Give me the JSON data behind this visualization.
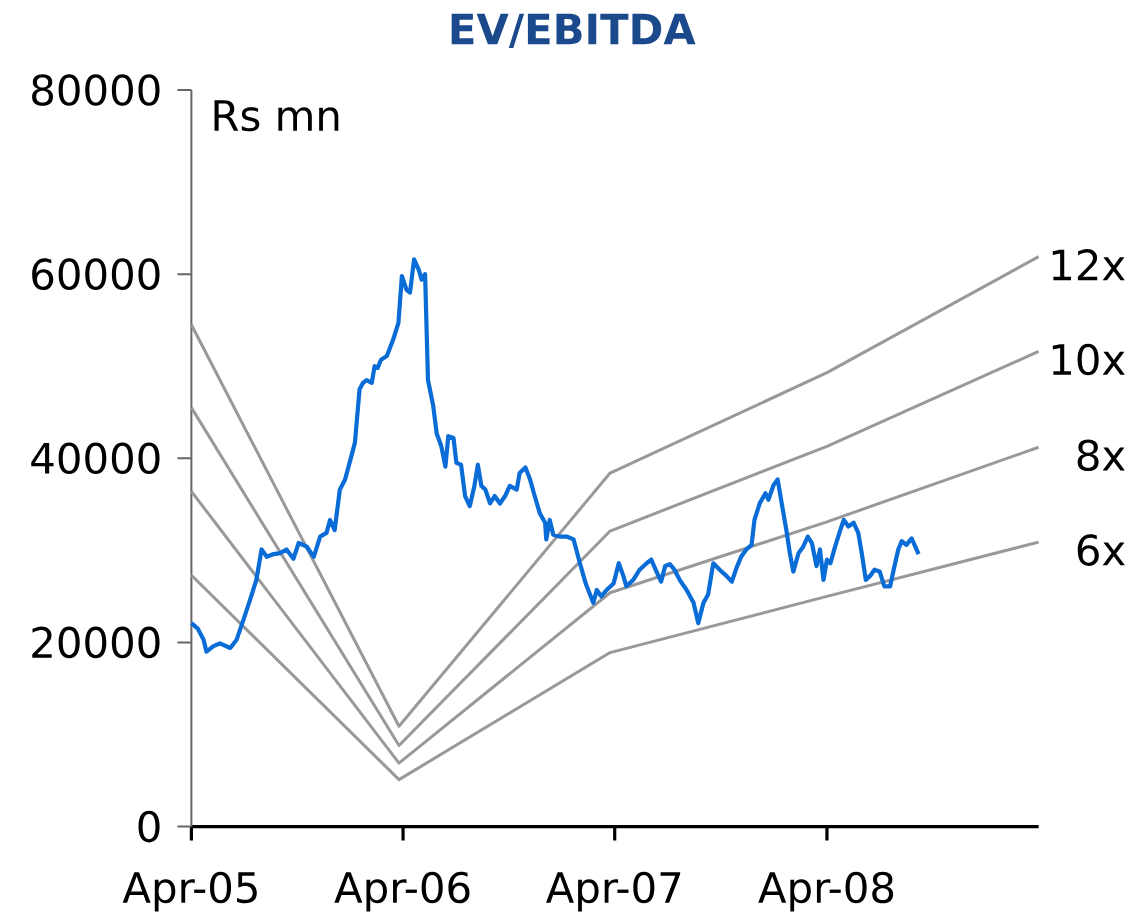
{
  "chart_data": {
    "type": "line",
    "title": "EV/EBITDA",
    "ylabel": "Rs mn",
    "xlim": [
      "2005-04-01",
      "2009-04-01"
    ],
    "xticks": [
      {
        "value": "2005-04-01",
        "label": "Apr-05"
      },
      {
        "value": "2006-04-01",
        "label": "Apr-06"
      },
      {
        "value": "2007-04-01",
        "label": "Apr-07"
      },
      {
        "value": "2008-04-01",
        "label": "Apr-08"
      }
    ],
    "ylim": [
      0,
      80000
    ],
    "yticks": [
      0,
      20000,
      40000,
      60000,
      80000
    ],
    "marker": "none",
    "series": [
      {
        "color": "#0a6cd6",
        "x": [
          "2005-04-01",
          "2005-04-12",
          "2005-04-22",
          "2005-04-27",
          "2005-05-09",
          "2005-05-20",
          "2005-06-07",
          "2005-06-18",
          "2005-06-30",
          "2005-07-11",
          "2005-07-22",
          "2005-07-31",
          "2005-08-09",
          "2005-08-21",
          "2005-09-01",
          "2005-09-12",
          "2005-09-24",
          "2005-10-03",
          "2005-10-17",
          "2005-10-29",
          "2005-11-09",
          "2005-11-20",
          "2005-11-26",
          "2005-12-04",
          "2005-12-13",
          "2005-12-22",
          "2005-12-31",
          "2006-01-08",
          "2006-01-16",
          "2006-01-22",
          "2006-01-28",
          "2006-02-06",
          "2006-02-11",
          "2006-02-16",
          "2006-02-22",
          "2006-03-04",
          "2006-03-15",
          "2006-03-24",
          "2006-03-30",
          "2006-04-07",
          "2006-04-13",
          "2006-04-20",
          "2006-04-28",
          "2006-05-03",
          "2006-05-09",
          "2006-05-14",
          "2006-05-23",
          "2006-05-29",
          "2006-06-06",
          "2006-06-13",
          "2006-06-18",
          "2006-06-27",
          "2006-07-02",
          "2006-07-10",
          "2006-07-17",
          "2006-07-25",
          "2006-08-02",
          "2006-08-08",
          "2006-08-14",
          "2006-08-21",
          "2006-08-29",
          "2006-09-06",
          "2006-09-15",
          "2006-09-24",
          "2006-10-02",
          "2006-10-14",
          "2006-10-19",
          "2006-10-29",
          "2006-11-06",
          "2006-11-14",
          "2006-11-23",
          "2006-12-02",
          "2006-12-04",
          "2006-12-10",
          "2006-12-16",
          "2006-12-27",
          "2007-01-08",
          "2007-01-20",
          "2007-01-31",
          "2007-02-10",
          "2007-02-23",
          "2007-03-01",
          "2007-03-09",
          "2007-03-18",
          "2007-03-30",
          "2007-04-08",
          "2007-04-16",
          "2007-04-21",
          "2007-05-03",
          "2007-05-14",
          "2007-05-26",
          "2007-06-03",
          "2007-06-12",
          "2007-06-20",
          "2007-06-27",
          "2007-07-05",
          "2007-07-13",
          "2007-07-22",
          "2007-08-03",
          "2007-08-15",
          "2007-08-23",
          "2007-09-01",
          "2007-09-09",
          "2007-09-18",
          "2007-09-29",
          "2007-10-11",
          "2007-10-20",
          "2007-10-28",
          "2007-11-05",
          "2007-11-14",
          "2007-11-23",
          "2007-11-28",
          "2007-12-07",
          "2007-12-17",
          "2007-12-22",
          "2007-12-31",
          "2008-01-07",
          "2008-01-14",
          "2008-01-22",
          "2008-01-28",
          "2008-02-03",
          "2008-02-12",
          "2008-02-20",
          "2008-02-28",
          "2008-03-06",
          "2008-03-14",
          "2008-03-20",
          "2008-03-26",
          "2008-04-01",
          "2008-04-07",
          "2008-04-15",
          "2008-04-24",
          "2008-04-30",
          "2008-05-08",
          "2008-05-17",
          "2008-05-25",
          "2008-05-31",
          "2008-06-07",
          "2008-06-14",
          "2008-06-22",
          "2008-07-01",
          "2008-07-09",
          "2008-07-19",
          "2008-07-25",
          "2008-08-02",
          "2008-08-08",
          "2008-08-16",
          "2008-08-25",
          "2008-08-30",
          "2008-09-06"
        ],
        "values": [
          22100,
          21500,
          20300,
          19000,
          19600,
          19900,
          19400,
          20300,
          22500,
          24600,
          26800,
          30100,
          29300,
          29600,
          29700,
          30100,
          29100,
          30800,
          30400,
          29300,
          31500,
          31900,
          33300,
          32200,
          36600,
          37700,
          39800,
          41700,
          47500,
          48200,
          48500,
          48200,
          50000,
          49800,
          50700,
          51100,
          52900,
          54700,
          59800,
          58300,
          58000,
          61600,
          60500,
          59400,
          60000,
          48500,
          45700,
          42700,
          41300,
          39100,
          42400,
          42200,
          39500,
          39300,
          35900,
          34800,
          37000,
          39300,
          37000,
          36600,
          35100,
          35900,
          35100,
          35900,
          37000,
          36600,
          38400,
          39000,
          37700,
          35900,
          34000,
          33000,
          31200,
          33300,
          31700,
          31500,
          31500,
          31200,
          28600,
          26400,
          24300,
          25700,
          25000,
          25700,
          26400,
          28600,
          27200,
          26100,
          26800,
          27900,
          28600,
          29000,
          27700,
          26600,
          28300,
          28500,
          27900,
          26800,
          25700,
          24300,
          22100,
          24300,
          25200,
          28600,
          27900,
          27200,
          26600,
          28100,
          29300,
          30100,
          30600,
          33300,
          35100,
          36200,
          35500,
          37100,
          37700,
          35100,
          32200,
          29700,
          27700,
          29700,
          30400,
          31500,
          30800,
          28300,
          30100,
          26800,
          29000,
          28600,
          30400,
          32200,
          33300,
          32600,
          33000,
          31900,
          29700,
          26800,
          27200,
          27900,
          27700,
          26100,
          26100,
          27900,
          30100,
          31000,
          30600,
          31300,
          30600,
          29600
        ]
      },
      {
        "name": "12x",
        "color": "#999999",
        "x": [
          "2005-04-01",
          "2006-03-25",
          "2007-03-24",
          "2008-04-01",
          "2009-04-01"
        ],
        "values": [
          54500,
          10900,
          38400,
          49300,
          61900
        ]
      },
      {
        "name": "10x",
        "color": "#999999",
        "x": [
          "2005-04-01",
          "2006-03-25",
          "2007-03-24",
          "2008-04-01",
          "2009-04-01"
        ],
        "values": [
          45500,
          8800,
          32100,
          41300,
          51600
        ]
      },
      {
        "name": "8x",
        "color": "#999999",
        "x": [
          "2005-04-01",
          "2006-03-25",
          "2007-03-24",
          "2008-04-01",
          "2009-04-01"
        ],
        "values": [
          36400,
          6900,
          25400,
          33100,
          41200
        ]
      },
      {
        "name": "6x",
        "color": "#999999",
        "x": [
          "2005-04-01",
          "2006-03-25",
          "2007-03-24",
          "2008-04-01",
          "2009-04-01"
        ],
        "values": [
          27300,
          5100,
          18900,
          25000,
          30900
        ]
      }
    ]
  }
}
